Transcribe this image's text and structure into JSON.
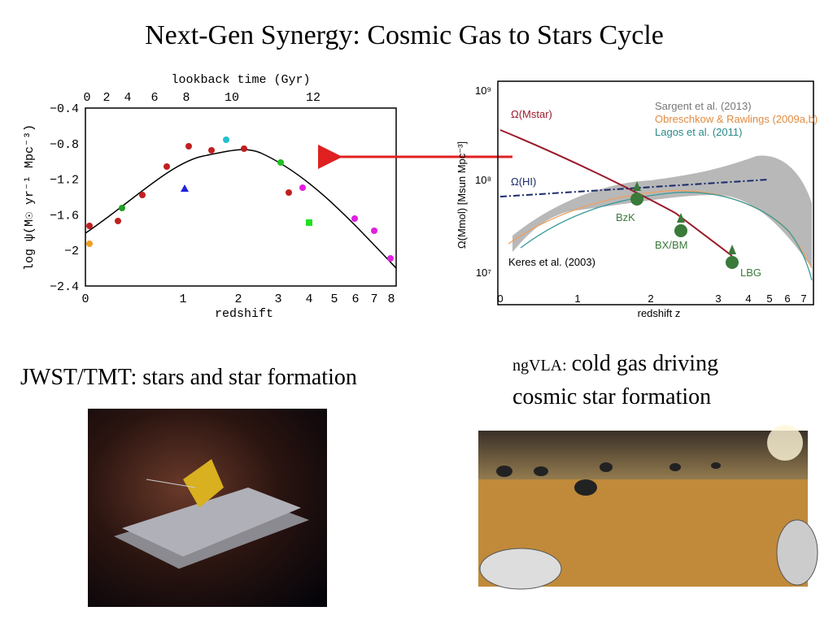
{
  "title": "Next-Gen Synergy: Cosmic Gas to Stars Cycle",
  "left_plot": {
    "top_label": "lookback time (Gyr)",
    "top_ticks": [
      "0",
      "2",
      "4",
      "6",
      "8",
      "10",
      "12"
    ],
    "y_label": "log ψ(M☉ yr⁻¹ Mpc⁻³)",
    "y_ticks": [
      "−0.4",
      "−0.8",
      "−1.2",
      "−1.6",
      "−2",
      "−2.4"
    ],
    "x_ticks": [
      "0",
      "1",
      "2",
      "3",
      "4",
      "5",
      "6",
      "7",
      "8"
    ],
    "x_label": "redshift"
  },
  "right_plot": {
    "y_label": "Ω(Mmol) [Msun Mpc⁻³]",
    "y_ticks": [
      "10⁹",
      "10⁸",
      "10⁷"
    ],
    "x_ticks": [
      "0",
      "1",
      "2",
      "3",
      "4",
      "5",
      "6",
      "7"
    ],
    "x_label": "redshift z",
    "legend": [
      "Sargent et al. (2013)",
      "Obreschkow & Rawlings (2009a,b)",
      "Lagos et al. (2011)"
    ],
    "annotations": [
      "Ω(Mstar)",
      "Ω(HI)",
      "BzK",
      "BX/BM",
      "LBG",
      "Keres et al. (2003)"
    ]
  },
  "caption_left": "JWST/TMT: stars and star formation",
  "caption_right": {
    "lead": "ngVLA:",
    "line1": "cold gas driving",
    "line2": "cosmic star formation"
  }
}
